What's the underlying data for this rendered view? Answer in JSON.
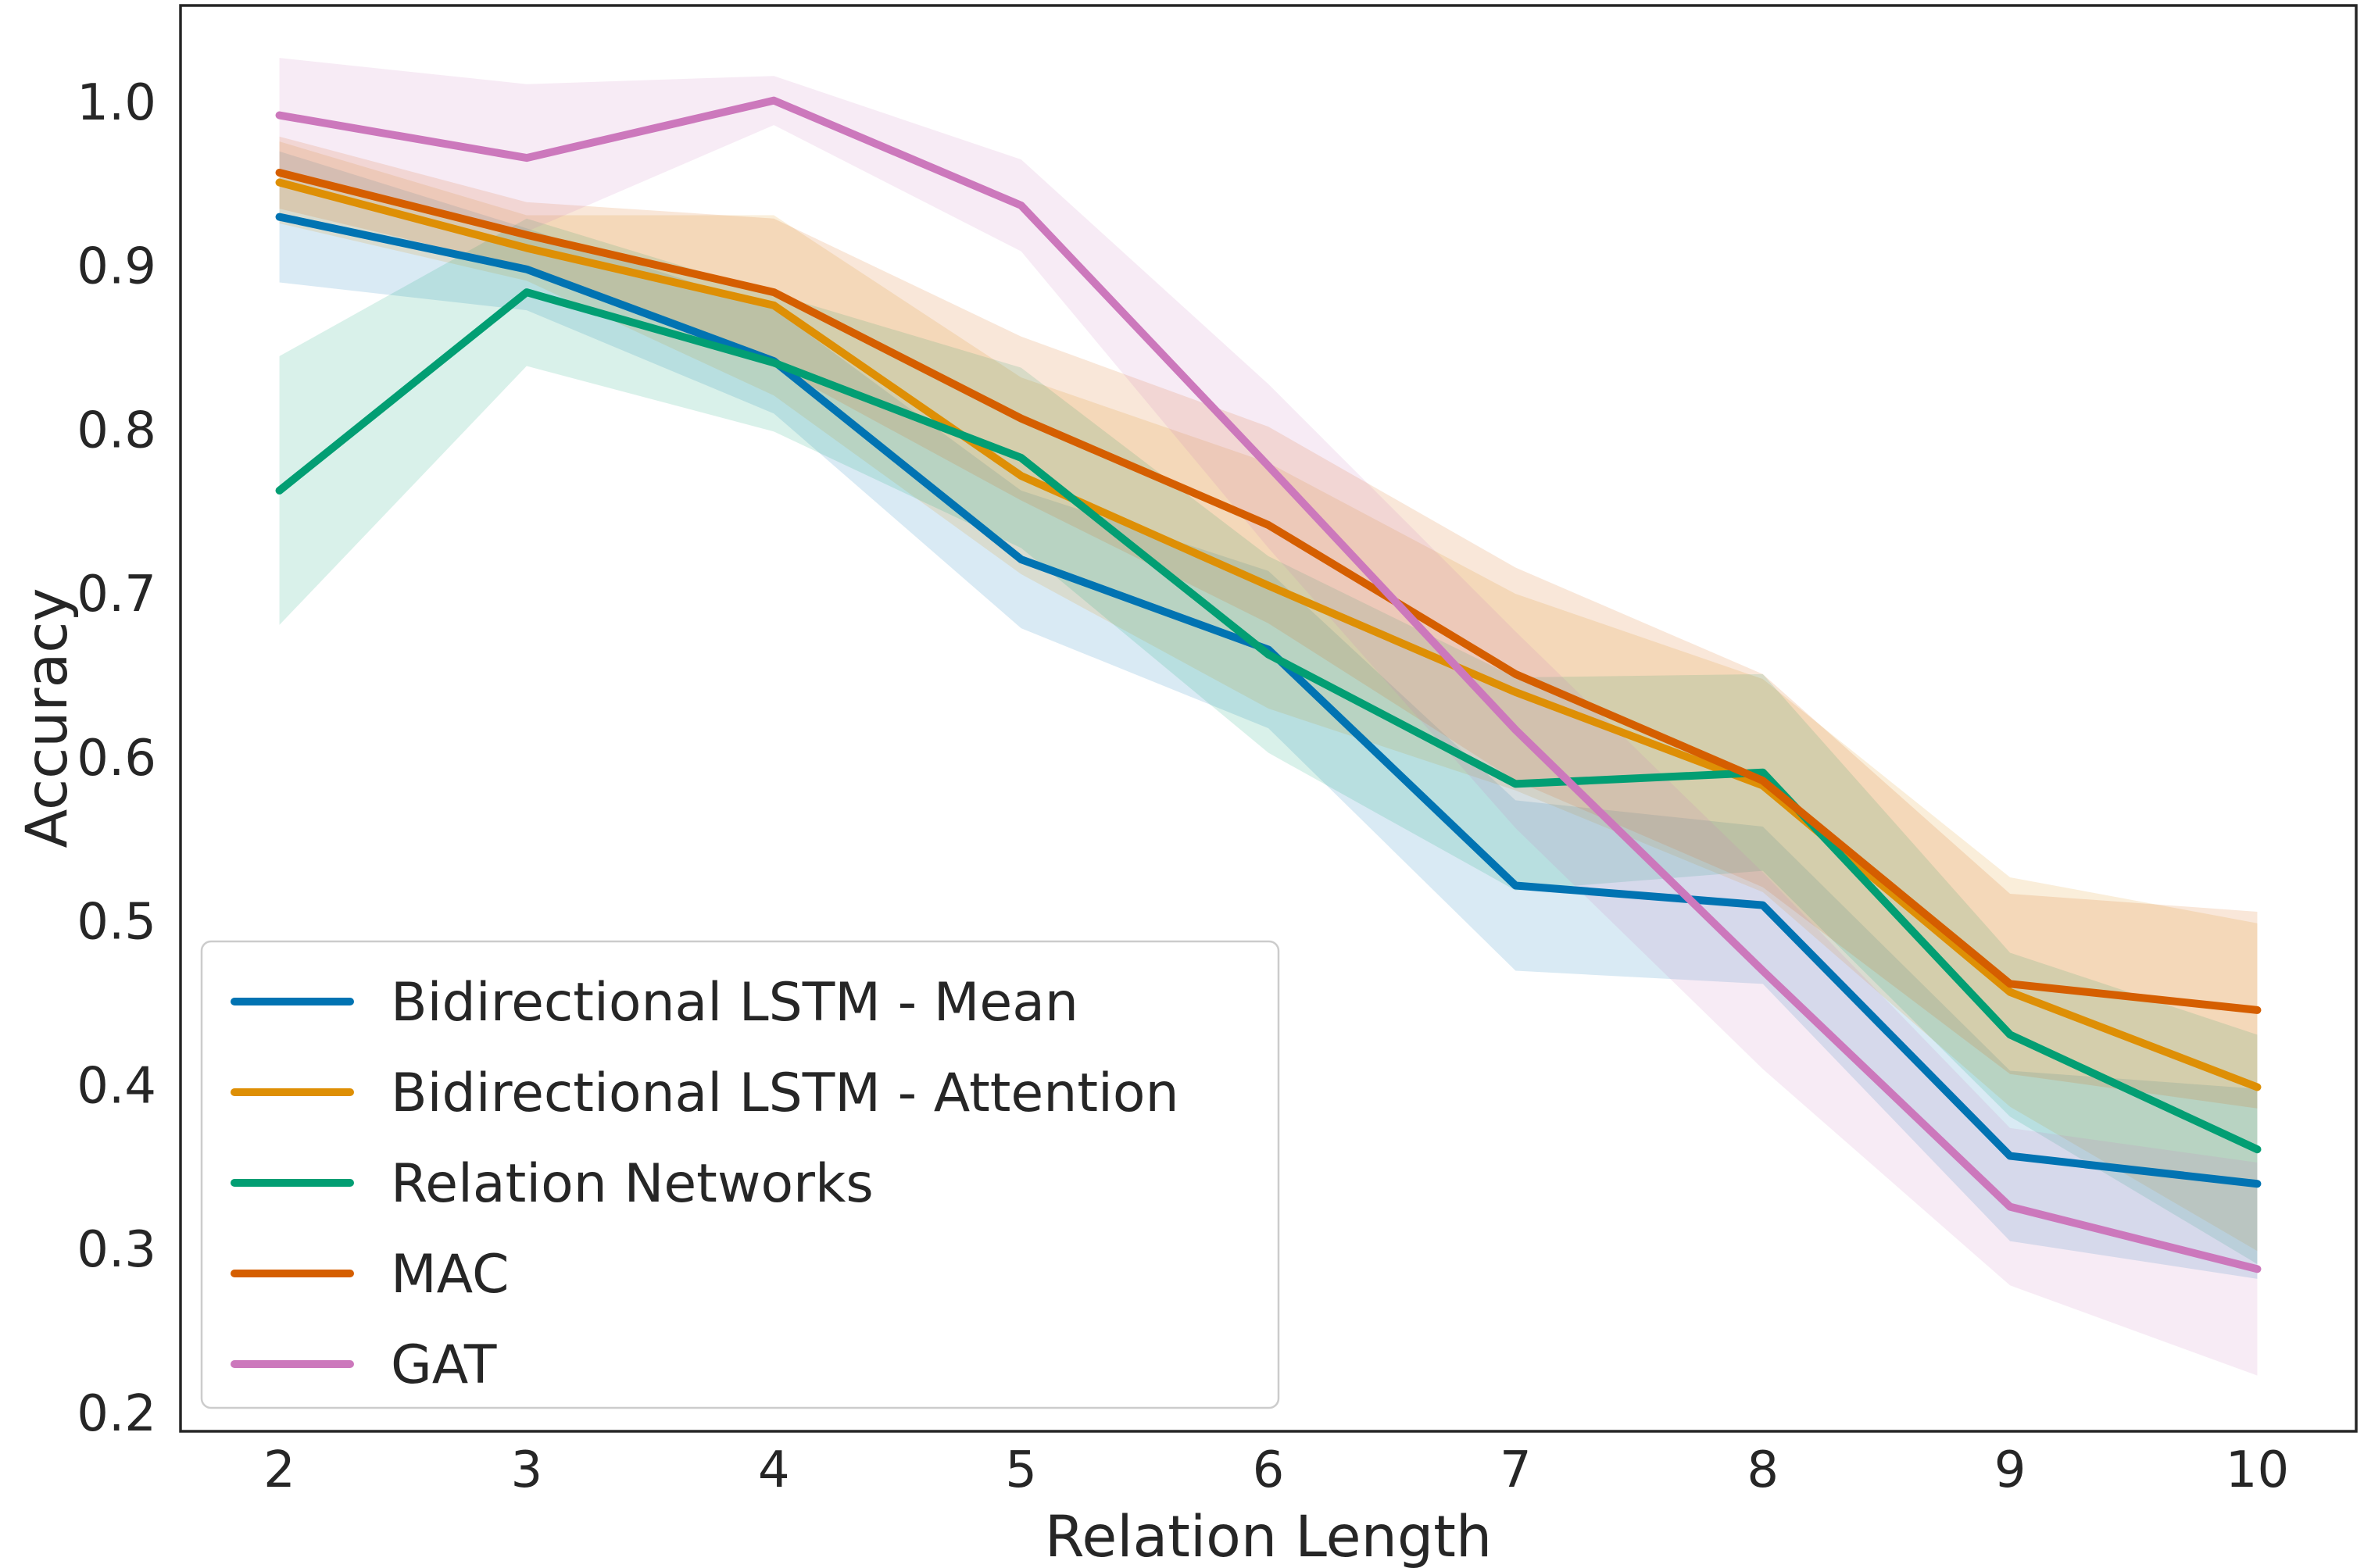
{
  "chart_data": {
    "type": "line",
    "title": "",
    "xlabel": "Relation Length",
    "ylabel": "Accuracy",
    "x": [
      2,
      3,
      4,
      5,
      6,
      7,
      8,
      9,
      10
    ],
    "xtick_labels": [
      "2",
      "3",
      "4",
      "5",
      "6",
      "7",
      "8",
      "9",
      "10"
    ],
    "ytick_values": [
      1.0,
      0.9,
      0.8,
      0.7,
      0.6,
      0.5,
      0.4,
      0.3,
      0.2
    ],
    "ytick_labels": [
      "1.0",
      "0.9",
      "0.8",
      "0.7",
      "0.6",
      "0.5",
      "0.4",
      "0.3",
      "0.2"
    ],
    "xlim": [
      1.6,
      10.4
    ],
    "ylim": [
      0.189,
      1.059
    ],
    "grid": false,
    "legend_position": "lower left",
    "series": [
      {
        "name": "Bidirectional LSTM - Mean",
        "color": "#0173b2",
        "values": [
          0.93,
          0.898,
          0.842,
          0.721,
          0.666,
          0.522,
          0.51,
          0.357,
          0.34
        ],
        "band": [
          0.04,
          0.025,
          0.032,
          0.042,
          0.048,
          0.052,
          0.048,
          0.052,
          0.058
        ]
      },
      {
        "name": "Bidirectional LSTM - Attention",
        "color": "#de8f05",
        "values": [
          0.951,
          0.911,
          0.876,
          0.772,
          0.705,
          0.64,
          0.583,
          0.457,
          0.399
        ],
        "band": [
          0.025,
          0.02,
          0.055,
          0.06,
          0.075,
          0.06,
          0.065,
          0.07,
          0.1
        ]
      },
      {
        "name": "Relation Networks",
        "color": "#029e73",
        "values": [
          0.763,
          0.884,
          0.841,
          0.783,
          0.663,
          0.584,
          0.591,
          0.431,
          0.361
        ],
        "band": [
          0.082,
          0.045,
          0.042,
          0.055,
          0.06,
          0.065,
          0.06,
          0.05,
          0.07
        ]
      },
      {
        "name": "MAC",
        "color": "#d55e00",
        "values": [
          0.957,
          0.919,
          0.884,
          0.807,
          0.742,
          0.651,
          0.586,
          0.462,
          0.446
        ],
        "band": [
          0.022,
          0.02,
          0.045,
          0.05,
          0.06,
          0.065,
          0.065,
          0.055,
          0.06
        ]
      },
      {
        "name": "GAT",
        "color": "#cc78bc",
        "values": [
          0.992,
          0.966,
          1.001,
          0.937,
          0.778,
          0.617,
          0.47,
          0.326,
          0.288
        ],
        "band": [
          0.035,
          0.045,
          0.015,
          0.028,
          0.05,
          0.06,
          0.06,
          0.048,
          0.065
        ]
      }
    ]
  }
}
